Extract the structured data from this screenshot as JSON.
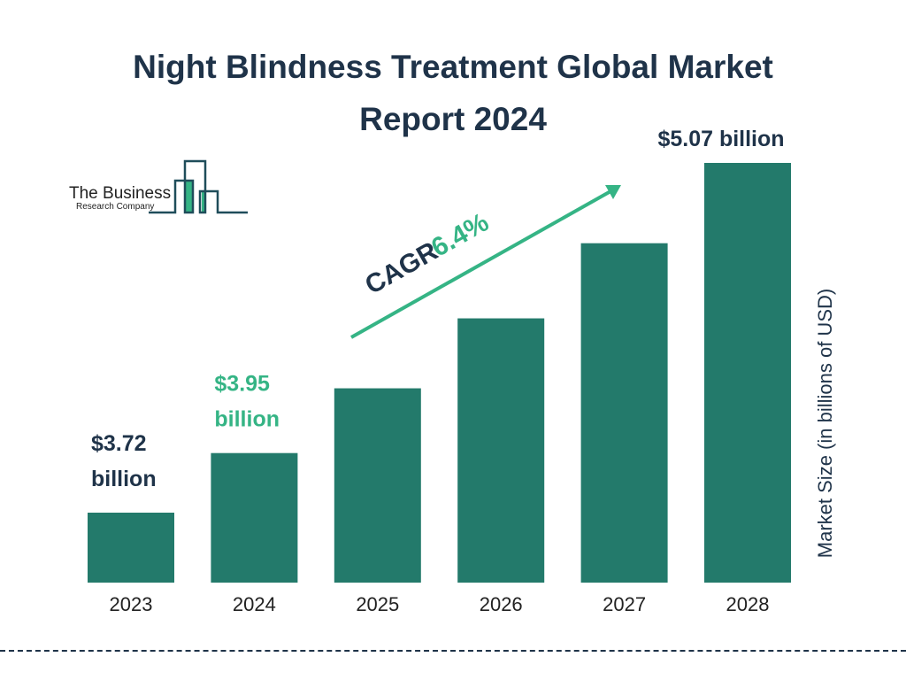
{
  "title_line1": "Night Blindness Treatment Global Market",
  "title_line2": "Report 2024",
  "logo": {
    "line1": "The Business",
    "line2": "Research Company"
  },
  "colors": {
    "bar": "#237a6b",
    "accent": "#35b485",
    "text": "#1f3349"
  },
  "cagr": {
    "label": "CAGR",
    "value": "6.4%"
  },
  "chart_data": {
    "type": "bar",
    "categories": [
      "2023",
      "2024",
      "2025",
      "2026",
      "2027",
      "2028"
    ],
    "values": [
      3.72,
      3.95,
      4.2,
      4.47,
      4.76,
      5.07
    ],
    "data_labels": [
      {
        "index": 0,
        "line1": "$3.72",
        "line2": "billion",
        "color": "#1f3349"
      },
      {
        "index": 1,
        "line1": "$3.95",
        "line2": "billion",
        "color": "#35b485"
      },
      {
        "index": 5,
        "line1": "$5.07 billion",
        "line2": "",
        "color": "#1f3349"
      }
    ],
    "title": "Night Blindness Treatment Global Market Report 2024",
    "xlabel": "",
    "ylabel": "Market Size (in billions of USD)",
    "grid": false,
    "legend": "none"
  }
}
